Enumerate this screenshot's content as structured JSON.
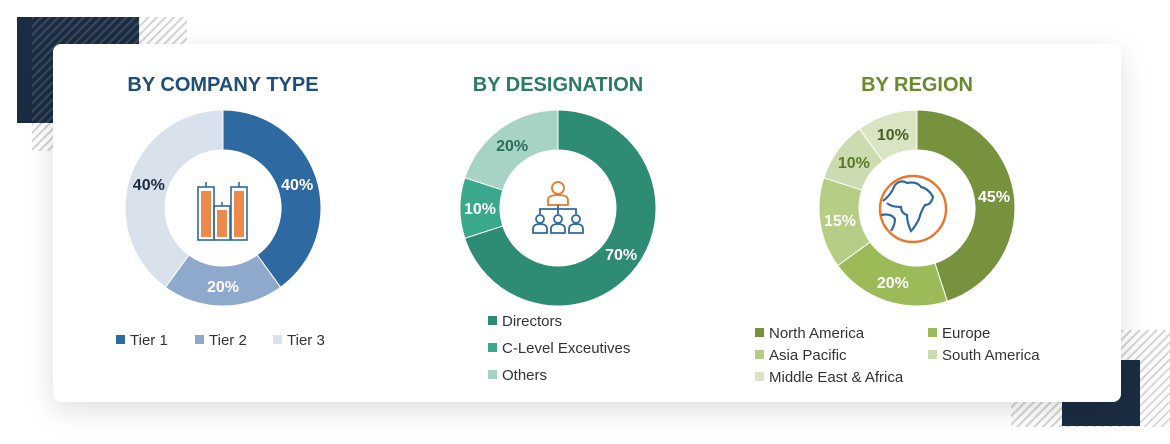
{
  "chart_data": [
    {
      "type": "pie",
      "variant": "donut",
      "title": "BY COMPANY TYPE",
      "title_color": "#1f4e79",
      "center_icon": "office-buildings-icon",
      "categories": [
        "Tier 1",
        "Tier 2",
        "Tier 3"
      ],
      "values": [
        40,
        20,
        40
      ],
      "labels": [
        "40%",
        "20%",
        "40%"
      ],
      "colors": [
        "#2e6aa1",
        "#8ea9cc",
        "#d9e1ec"
      ],
      "label_colors": [
        "#ffffff",
        "#ffffff",
        "#1b2d42"
      ],
      "legend_position": "bottom"
    },
    {
      "type": "pie",
      "variant": "donut",
      "title": "BY DESIGNATION",
      "title_color": "#2a7a64",
      "center_icon": "org-hierarchy-icon",
      "categories": [
        "Directors",
        "C-Level Exceutives",
        "Others"
      ],
      "values": [
        70,
        10,
        20
      ],
      "labels": [
        "70%",
        "10%",
        "20%"
      ],
      "colors": [
        "#2e8b74",
        "#3aa88c",
        "#a6d3c4"
      ],
      "label_colors": [
        "#ffffff",
        "#ffffff",
        "#2a6e5c"
      ],
      "legend_position": "bottom"
    },
    {
      "type": "pie",
      "variant": "donut",
      "title": "BY REGION",
      "title_color": "#6a8a2e",
      "center_icon": "globe-icon",
      "categories": [
        "North America",
        "Europe",
        "Asia Pacific",
        "South America",
        "Middle East & Africa"
      ],
      "values": [
        45,
        20,
        15,
        10,
        10
      ],
      "labels": [
        "45%",
        "20%",
        "15%",
        "10%",
        "10%"
      ],
      "colors": [
        "#76923c",
        "#9bbb59",
        "#b5cd85",
        "#cddcb0",
        "#d9e4c3"
      ],
      "label_colors": [
        "#ffffff",
        "#ffffff",
        "#ffffff",
        "#5a7a2a",
        "#4a5e22"
      ],
      "legend_position": "bottom"
    }
  ]
}
